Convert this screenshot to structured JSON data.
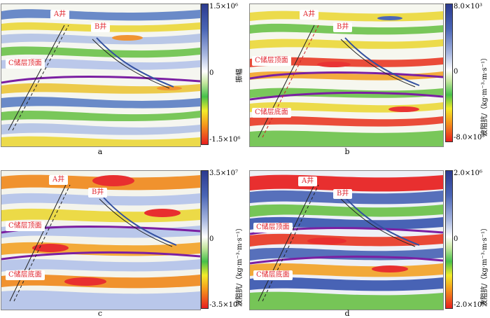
{
  "panels": [
    {
      "caption": "a",
      "well_a": "A井",
      "well_b": "B井",
      "top": "C储层顶面",
      "bottom": "",
      "cb_max": "1.5×10⁶",
      "cb_mid": "0",
      "cb_min": "-1.5×10⁶",
      "axis_title": "振幅"
    },
    {
      "caption": "b",
      "well_a": "A井",
      "well_b": "B井",
      "top": "C储层顶面",
      "bottom": "C储层底面",
      "cb_max": "8.0×10³",
      "cb_mid": "0",
      "cb_min": "-8.0×10³",
      "axis_title": "波阻抗/（kg·m⁻³·m·s⁻¹）"
    },
    {
      "caption": "c",
      "well_a": "A井",
      "well_b": "B井",
      "top": "C储层顶面",
      "bottom": "C储层底面",
      "cb_max": "3.5×10⁷",
      "cb_mid": "0",
      "cb_min": "-3.5×10⁷",
      "axis_title": "波阻抗/（kg·m⁻³·m·s⁻¹）"
    },
    {
      "caption": "d",
      "well_a": "A井",
      "well_b": "B井",
      "top": "C储层顶面",
      "bottom": "C储层底面",
      "cb_max": "2.0×10⁶",
      "cb_mid": "0",
      "cb_min": "-2.0×10⁶",
      "axis_title": "波阻抗/（kg·m⁻³·m·s⁻¹）"
    }
  ],
  "colors": {
    "horizon": "#7b1fa2",
    "label_text": "#e0262e",
    "positive": "#2b3a8f",
    "negative": "#e81f1f"
  }
}
